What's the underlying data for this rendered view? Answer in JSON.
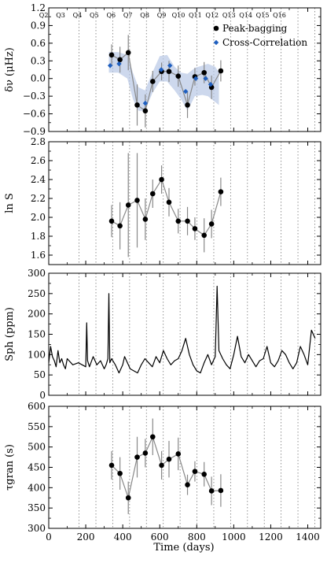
{
  "chart_data": [
    {
      "type": "line",
      "panel": "delta-nu",
      "ylabel": "δν (μHz)",
      "ylim": [
        -0.9,
        1.2
      ],
      "yticks": [
        -0.9,
        -0.6,
        -0.3,
        0.0,
        0.3,
        0.6,
        0.9,
        1.2
      ],
      "ytick_labels": [
        "−0.9",
        "−0.6",
        "−0.3",
        "0.0",
        "0.3",
        "0.6",
        "0.9",
        "1.2"
      ],
      "quarters": [
        "Q2",
        "Q3",
        "Q4",
        "Q5",
        "Q6",
        "Q7",
        "Q8",
        "Q9",
        "Q10",
        "Q11",
        "Q12",
        "Q13",
        "Q14",
        "Q15",
        "Q16"
      ],
      "quarter_positions": [
        164,
        255,
        346,
        437,
        528,
        619,
        710,
        801,
        892,
        983,
        1074,
        1165,
        1256,
        1347,
        1438
      ],
      "legend": {
        "placement": "top-right",
        "entries": [
          "Peak-bagging",
          "Cross-Correlation"
        ]
      },
      "band": {
        "x": [
          325,
          375,
          425,
          455,
          485,
          520,
          560,
          600,
          640,
          680,
          715,
          750,
          790,
          830,
          860,
          900,
          920
        ],
        "upper": [
          0.45,
          0.45,
          0.4,
          0.1,
          -0.15,
          -0.2,
          0.1,
          0.38,
          0.4,
          0.2,
          0.1,
          0.08,
          0.18,
          0.22,
          0.25,
          0.2,
          0.1
        ],
        "lower": [
          0.1,
          0.1,
          0.0,
          -0.35,
          -0.55,
          -0.55,
          -0.25,
          -0.05,
          -0.05,
          -0.2,
          -0.35,
          -0.55,
          -0.3,
          -0.28,
          -0.3,
          -0.4,
          -0.45
        ]
      },
      "series": [
        {
          "name": "Peak-bagging",
          "marker": "circle",
          "color": "#000000",
          "x": [
            340,
            385,
            430,
            478,
            522,
            562,
            610,
            650,
            700,
            750,
            790,
            840,
            880,
            930
          ],
          "y": [
            0.4,
            0.32,
            0.44,
            -0.45,
            -0.55,
            -0.05,
            0.12,
            0.12,
            0.04,
            -0.45,
            0.03,
            0.1,
            -0.15,
            0.13
          ],
          "yerr": [
            0.18,
            0.22,
            0.3,
            0.35,
            0.28,
            0.18,
            0.15,
            0.18,
            0.18,
            0.22,
            0.15,
            0.18,
            0.2,
            0.18
          ]
        },
        {
          "name": "Cross-Correlation",
          "marker": "diamond",
          "color": "#1f5fbf",
          "x": [
            332,
            380,
            522,
            608,
            655,
            740,
            795,
            848,
            875
          ],
          "y": [
            0.22,
            0.25,
            -0.42,
            0.15,
            0.22,
            -0.22,
            0.0,
            0.0,
            -0.1
          ]
        }
      ]
    },
    {
      "type": "line",
      "panel": "ln-s",
      "ylabel": "ln S",
      "ylim": [
        1.5,
        2.8
      ],
      "yticks": [
        1.6,
        1.8,
        2.0,
        2.2,
        2.4,
        2.6,
        2.8
      ],
      "ytick_labels": [
        "1.6",
        "1.8",
        "2.0",
        "2.2",
        "2.4",
        "2.6",
        "2.8"
      ],
      "series": [
        {
          "name": "",
          "marker": "circle",
          "color": "#000000",
          "x": [
            340,
            385,
            430,
            478,
            522,
            562,
            610,
            650,
            700,
            750,
            790,
            840,
            880,
            930
          ],
          "y": [
            1.96,
            1.91,
            2.13,
            2.18,
            1.98,
            2.25,
            2.4,
            2.16,
            1.96,
            1.96,
            1.88,
            1.81,
            1.93,
            2.27
          ],
          "yerr": [
            0.17,
            0.25,
            0.55,
            0.5,
            0.22,
            0.15,
            0.15,
            0.15,
            0.13,
            0.15,
            0.12,
            0.18,
            0.15,
            0.15
          ]
        }
      ]
    },
    {
      "type": "line",
      "panel": "s-ph",
      "ylabel": "Sph (ppm)",
      "ylim": [
        0,
        300
      ],
      "yticks": [
        0,
        50,
        100,
        150,
        200,
        250,
        300
      ],
      "ytick_labels": [
        "0",
        "50",
        "100",
        "150",
        "200",
        "250",
        "300"
      ],
      "series": [
        {
          "name": "",
          "color": "#000000",
          "x": [
            0,
            10,
            20,
            30,
            40,
            50,
            60,
            70,
            80,
            90,
            100,
            130,
            160,
            200,
            205,
            210,
            220,
            240,
            260,
            280,
            300,
            310,
            320,
            325,
            330,
            340,
            360,
            380,
            400,
            410,
            420,
            440,
            460,
            480,
            500,
            520,
            540,
            560,
            580,
            600,
            620,
            640,
            660,
            680,
            700,
            720,
            740,
            760,
            780,
            800,
            820,
            840,
            860,
            880,
            900,
            905,
            910,
            920,
            940,
            960,
            980,
            1000,
            1020,
            1040,
            1060,
            1080,
            1100,
            1120,
            1140,
            1160,
            1180,
            1200,
            1220,
            1240,
            1260,
            1280,
            1300,
            1320,
            1340,
            1360,
            1380,
            1400,
            1420,
            1440
          ],
          "y": [
            80,
            120,
            95,
            85,
            70,
            110,
            80,
            90,
            75,
            65,
            90,
            75,
            80,
            70,
            178,
            85,
            70,
            95,
            75,
            85,
            65,
            75,
            90,
            250,
            80,
            90,
            75,
            55,
            75,
            95,
            85,
            65,
            60,
            55,
            75,
            90,
            80,
            70,
            95,
            80,
            110,
            90,
            75,
            85,
            90,
            110,
            140,
            100,
            75,
            60,
            55,
            80,
            100,
            75,
            95,
            180,
            268,
            110,
            90,
            75,
            65,
            100,
            145,
            95,
            80,
            100,
            85,
            70,
            85,
            90,
            120,
            80,
            70,
            85,
            110,
            100,
            80,
            65,
            80,
            120,
            100,
            75,
            160,
            140
          ]
        }
      ]
    },
    {
      "type": "line",
      "panel": "tau-gran",
      "xlabel": "Time (days)",
      "ylabel": "τgran (s)",
      "xlim": [
        0,
        1470
      ],
      "xticks": [
        0,
        200,
        400,
        600,
        800,
        1000,
        1200,
        1400
      ],
      "xtick_labels": [
        "0",
        "200",
        "400",
        "600",
        "800",
        "1000",
        "1200",
        "1400"
      ],
      "ylim": [
        300,
        600
      ],
      "yticks": [
        300,
        350,
        400,
        450,
        500,
        550,
        600
      ],
      "ytick_labels": [
        "300",
        "350",
        "400",
        "450",
        "500",
        "550",
        "600"
      ],
      "series": [
        {
          "name": "",
          "marker": "circle",
          "color": "#000000",
          "x": [
            340,
            385,
            430,
            478,
            522,
            562,
            610,
            650,
            700,
            750,
            790,
            840,
            880,
            930
          ],
          "y": [
            455,
            435,
            375,
            475,
            485,
            525,
            455,
            470,
            483,
            407,
            440,
            433,
            392,
            393
          ],
          "yerr": [
            35,
            40,
            40,
            50,
            35,
            45,
            35,
            45,
            40,
            25,
            25,
            30,
            35,
            40
          ]
        }
      ]
    }
  ]
}
